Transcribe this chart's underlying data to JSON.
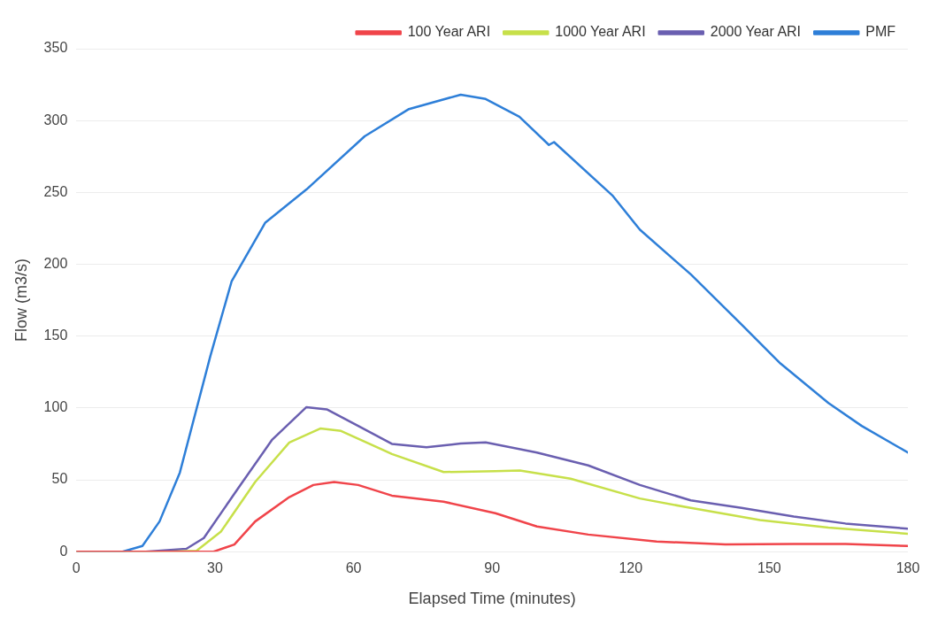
{
  "chart_data": {
    "type": "line",
    "xlabel": "Elapsed Time (minutes)",
    "ylabel": "Flow (m3/s)",
    "xlim": [
      0,
      180
    ],
    "xticks": [
      0,
      30,
      60,
      90,
      120,
      150,
      180
    ],
    "ylim": [
      0,
      350
    ],
    "yticks": [
      0,
      50,
      100,
      150,
      200,
      250,
      300,
      350
    ],
    "grid": "y",
    "legend": "top right",
    "marker": "none",
    "line_style": "solid",
    "series": [
      {
        "name": "100 Year ARI",
        "color": "#f0444a",
        "x": [
          0,
          20,
          29.7,
          34.2,
          38.7,
          46.1,
          51.3,
          55.8,
          61,
          68.3,
          79.5,
          90.7,
          99.7,
          110.8,
          125.6,
          140.5,
          155.3,
          166.5,
          180
        ],
        "values": [
          0,
          0,
          0,
          5,
          21,
          38,
          46.4,
          48.5,
          46.4,
          39,
          34.8,
          26.8,
          17.5,
          11.9,
          7.1,
          5,
          5.4,
          5.4,
          3.9
        ]
      },
      {
        "name": "1000 Year ARI",
        "color": "#c7e04a",
        "x": [
          0,
          20,
          26,
          31.3,
          38.7,
          46.1,
          52.8,
          57.3,
          68.3,
          79.5,
          90.7,
          96,
          107,
          122,
          133,
          148,
          162.8,
          180
        ],
        "values": [
          0,
          0,
          0.6,
          14,
          48.5,
          76,
          85.7,
          84,
          68,
          55.4,
          56,
          56.5,
          50.8,
          37,
          30.4,
          22,
          16.7,
          12.5
        ]
      },
      {
        "name": "2000 Year ARI",
        "color": "#6a5fb0",
        "x": [
          0,
          15,
          23.8,
          27.6,
          35,
          42.4,
          49.8,
          54.2,
          61,
          68.3,
          75.8,
          83.2,
          88.6,
          99.7,
          110.8,
          122,
          133,
          144,
          155.3,
          166.5,
          180
        ],
        "values": [
          0,
          0,
          2,
          9.5,
          44,
          78,
          100.6,
          99,
          87.5,
          75,
          72.6,
          75.3,
          76,
          69,
          60,
          46.4,
          35.7,
          30.4,
          24.4,
          19.6,
          16
        ]
      },
      {
        "name": "PMF",
        "color": "#2e7fd8",
        "x": [
          0,
          10,
          14.3,
          18,
          22.4,
          29,
          33.6,
          40.9,
          49.8,
          62.4,
          72,
          83.2,
          88.6,
          95.9,
          102.3,
          103.4,
          116,
          122,
          133,
          144,
          152.4,
          162.8,
          170,
          180
        ],
        "values": [
          0,
          0,
          4,
          21,
          55,
          136,
          188,
          229,
          252,
          289,
          308,
          318,
          315,
          302.6,
          283,
          285,
          248,
          224,
          193,
          158,
          131,
          103.5,
          87.5,
          69
        ]
      }
    ]
  }
}
